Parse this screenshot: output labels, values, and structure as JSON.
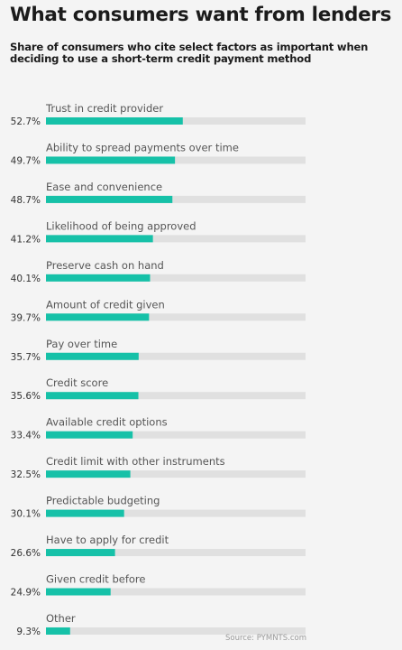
{
  "header": {
    "title": "What consumers want from lenders",
    "subtitle": "Share of consumers who cite select factors as important when deciding to use a short-term credit payment method"
  },
  "footer": {
    "source": "Source: PYMNTS.com"
  },
  "colors": {
    "bar": "#16c1a8",
    "track": "#e0e0e0",
    "label": "#555555",
    "value": "#333333"
  },
  "chart_data": {
    "type": "bar",
    "orientation": "horizontal",
    "xlim": [
      0,
      100
    ],
    "unit": "%",
    "categories": [
      "Trust in credit provider",
      "Ability to spread payments over time",
      "Ease and convenience",
      "Likelihood of being approved",
      "Preserve cash on hand",
      "Amount of credit given",
      "Pay over time",
      "Credit score",
      "Available credit options",
      "Credit limit with other instruments",
      "Predictable budgeting",
      "Have to apply for credit",
      "Given credit before",
      "Other"
    ],
    "values": [
      52.7,
      49.7,
      48.7,
      41.2,
      40.1,
      39.7,
      35.7,
      35.6,
      33.4,
      32.5,
      30.1,
      26.6,
      24.9,
      9.3
    ],
    "value_labels": [
      "52.7%",
      "49.7%",
      "48.7%",
      "41.2%",
      "40.1%",
      "39.7%",
      "35.7%",
      "35.6%",
      "33.4%",
      "32.5%",
      "30.1%",
      "26.6%",
      "24.9%",
      "9.3%"
    ]
  }
}
